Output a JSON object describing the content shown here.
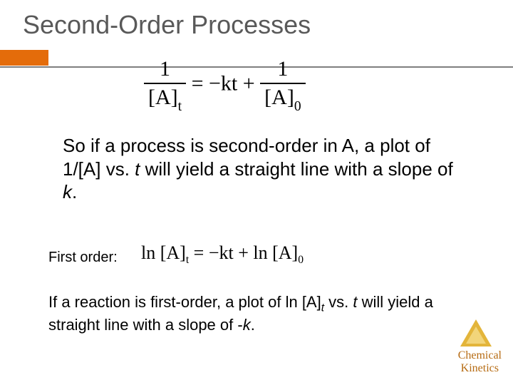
{
  "title": "Second-Order Processes",
  "colors": {
    "accent": "#e46c0a",
    "rule": "#7f7f7f",
    "title_text": "#595959",
    "body_text": "#000000",
    "footer_text": "#b66b12",
    "triangle_outer": "#e3b53a",
    "triangle_inner": "#f2d57a",
    "background": "#ffffff"
  },
  "typography": {
    "title_fontsize": 36,
    "body_fontsize": 26,
    "small_fontsize": 22,
    "label_fontsize": 20,
    "equation_fontfamily": "Times New Roman",
    "body_fontfamily": "Arial"
  },
  "eq1": {
    "frac1_num": "1",
    "frac1_den_A": "[A]",
    "frac1_den_sub": "t",
    "mid": " = −kt + ",
    "frac2_num": "1",
    "frac2_den_A": "[A]",
    "frac2_den_sub": "0"
  },
  "para1": {
    "t1": "So if a process is second-order in A, a plot of ",
    "v1": "1/[A]",
    "t2": " vs. ",
    "v2": "t",
    "t3": " will yield a straight line with a slope of ",
    "v3": "k",
    "t4": "."
  },
  "firstorder_label": "First order:",
  "eq2": {
    "ln1": "ln ",
    "A1": "[A]",
    "sub1": "t",
    "mid": " = −kt + ",
    "ln2": "ln ",
    "A2": "[A]",
    "sub2": "0"
  },
  "para2": {
    "t1": "If a reaction is first-order, a plot of ln [A]",
    "sub": "t",
    "t2": " vs. ",
    "v2": "t",
    "t3": " will yield a straight line with a slope of -",
    "v3": "k",
    "t4": "."
  },
  "footer": {
    "line1": "Chemical",
    "line2": "Kinetics"
  }
}
